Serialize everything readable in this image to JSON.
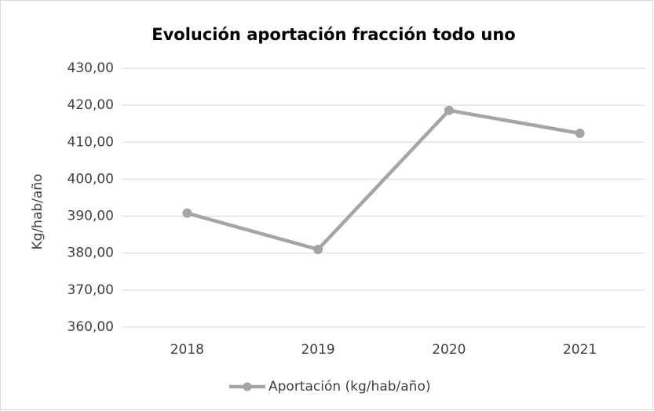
{
  "chart_data": {
    "type": "line",
    "title": "Evolución aportación fracción todo uno",
    "y_label": "Kg/hab/año",
    "categories": [
      "2018",
      "2019",
      "2020",
      "2021"
    ],
    "series": [
      {
        "name": "Aportación (kg/hab/año)",
        "color": "#a5a5a5",
        "values": [
          390.8,
          381.0,
          418.6,
          412.4
        ]
      }
    ],
    "ylim": [
      360,
      430
    ],
    "yticks": [
      {
        "value": 360,
        "label": "360,00"
      },
      {
        "value": 370,
        "label": "370,00"
      },
      {
        "value": 380,
        "label": "380,00"
      },
      {
        "value": 390,
        "label": "390,00"
      },
      {
        "value": 400,
        "label": "400,00"
      },
      {
        "value": 410,
        "label": "410,00"
      },
      {
        "value": 420,
        "label": "420,00"
      },
      {
        "value": 430,
        "label": "430,00"
      }
    ],
    "grid": true,
    "legend": "bottom"
  }
}
